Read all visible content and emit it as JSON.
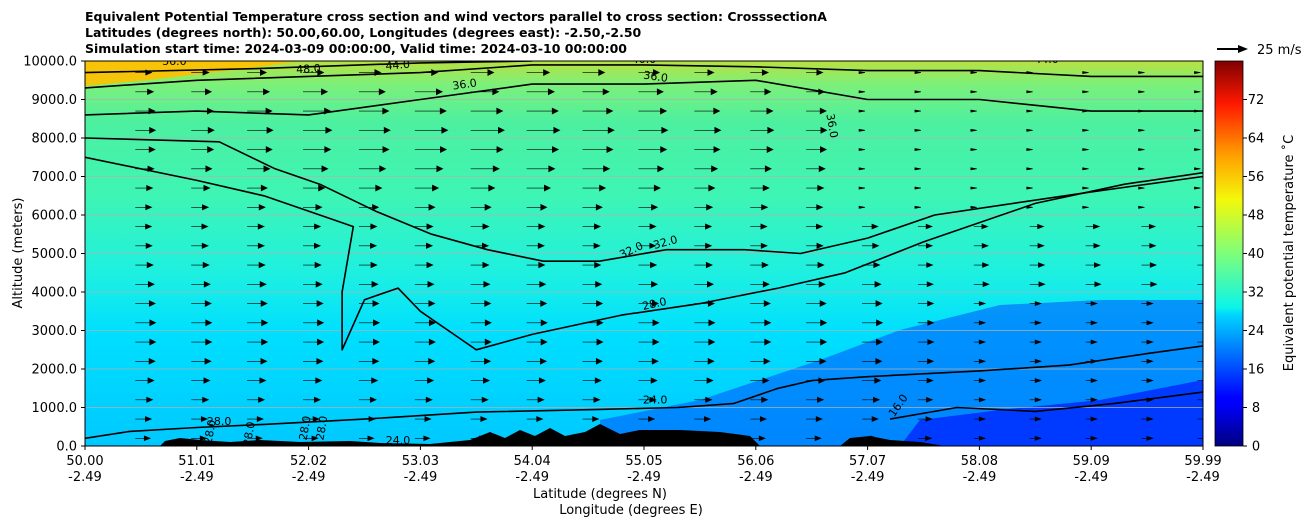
{
  "title": {
    "line1": "Equivalent Potential Temperature cross section and wind vectors parallel to cross section: CrosssectionA",
    "line2": "Latitudes (degrees north): 50.00,60.00, Longitudes (degrees east): -2.50,-2.50",
    "line3": "Simulation start time: 2024-03-09 00:00:00, Valid time: 2024-03-10 00:00:00"
  },
  "chart_data": {
    "type": "heatmap",
    "subtype": "filled contour cross-section with wind vectors",
    "ylabel": "Altitude (meters)",
    "xlabel_lat": "Latitude (degrees N)",
    "xlabel_lon": "Longitude (degrees E)",
    "ylim": [
      0,
      10000
    ],
    "y_ticks": [
      "0.0",
      "1000.0",
      "2000.0",
      "3000.0",
      "4000.0",
      "5000.0",
      "6000.0",
      "7000.0",
      "8000.0",
      "9000.0",
      "10000.0"
    ],
    "x_ticks": [
      {
        "lat": "50.00",
        "lon": "-2.49"
      },
      {
        "lat": "51.01",
        "lon": "-2.49"
      },
      {
        "lat": "52.02",
        "lon": "-2.49"
      },
      {
        "lat": "53.03",
        "lon": "-2.49"
      },
      {
        "lat": "54.04",
        "lon": "-2.49"
      },
      {
        "lat": "55.05",
        "lon": "-2.49"
      },
      {
        "lat": "56.06",
        "lon": "-2.49"
      },
      {
        "lat": "57.07",
        "lon": "-2.49"
      },
      {
        "lat": "58.08",
        "lon": "-2.49"
      },
      {
        "lat": "59.09",
        "lon": "-2.49"
      },
      {
        "lat": "59.99",
        "lon": "-2.49"
      }
    ],
    "colorbar": {
      "label": "Equivalent potential temperature ˚C",
      "range": [
        0,
        80
      ],
      "ticks": [
        "0",
        "8",
        "16",
        "24",
        "32",
        "40",
        "48",
        "56",
        "64",
        "72"
      ]
    },
    "quiver_key": {
      "label": "25 m/s"
    },
    "grid": "horizontal",
    "contour_labels": [
      "56.0",
      "48.0",
      "44.0",
      "40.0",
      "36.0",
      "36.0",
      "44.0",
      "36.0",
      "32.0",
      "32.0",
      "28.0",
      "24.0",
      "16.0",
      "28.0",
      "28.0",
      "28.0",
      "28.0",
      "28.0",
      "24.0"
    ],
    "contours": [
      {
        "level": 24,
        "points": [
          [
            0,
            200
          ],
          [
            0.4,
            380
          ],
          [
            1.0,
            480
          ],
          [
            1.6,
            560
          ],
          [
            2.5,
            700
          ],
          [
            3.5,
            880
          ],
          [
            4.6,
            950
          ],
          [
            5.3,
            1000
          ],
          [
            5.8,
            1100
          ],
          [
            6.2,
            1500
          ],
          [
            6.5,
            1700
          ],
          [
            7.0,
            1800
          ],
          [
            8.0,
            1950
          ],
          [
            8.8,
            2100
          ],
          [
            9.5,
            2400
          ],
          [
            10,
            2600
          ]
        ]
      },
      {
        "level": 28,
        "points": [
          [
            0,
            7500
          ],
          [
            1.0,
            6900
          ],
          [
            1.6,
            6500
          ],
          [
            2.2,
            5900
          ],
          [
            2.4,
            5700
          ],
          [
            2.3,
            4000
          ],
          [
            2.3,
            2500
          ],
          [
            2.5,
            3800
          ],
          [
            2.8,
            4100
          ],
          [
            3.0,
            3500
          ],
          [
            3.3,
            2900
          ],
          [
            3.5,
            2500
          ],
          [
            4.0,
            2900
          ],
          [
            4.8,
            3400
          ],
          [
            5.5,
            3700
          ],
          [
            6.2,
            4100
          ],
          [
            6.8,
            4500
          ],
          [
            7.5,
            5300
          ],
          [
            8.5,
            6300
          ],
          [
            9.3,
            6800
          ],
          [
            10,
            7100
          ]
        ]
      },
      {
        "level": 32,
        "points": [
          [
            0,
            8000
          ],
          [
            1.2,
            7900
          ],
          [
            1.7,
            7200
          ],
          [
            2.1,
            6800
          ],
          [
            2.6,
            6100
          ],
          [
            3.1,
            5500
          ],
          [
            3.6,
            5100
          ],
          [
            4.1,
            4800
          ],
          [
            4.6,
            4800
          ],
          [
            5.2,
            5100
          ],
          [
            5.9,
            5100
          ],
          [
            6.4,
            5000
          ],
          [
            7.0,
            5400
          ],
          [
            7.6,
            6000
          ],
          [
            8.3,
            6300
          ],
          [
            9.0,
            6600
          ],
          [
            10,
            7000
          ]
        ]
      },
      {
        "level": 36,
        "points": [
          [
            0,
            8600
          ],
          [
            1.0,
            8700
          ],
          [
            2.0,
            8600
          ],
          [
            3.0,
            9000
          ],
          [
            4.0,
            9400
          ],
          [
            5.0,
            9400
          ],
          [
            6.0,
            9500
          ],
          [
            7.0,
            9000
          ],
          [
            8.0,
            9000
          ],
          [
            9.0,
            8700
          ],
          [
            10,
            8700
          ]
        ]
      },
      {
        "level": 40,
        "points": [
          [
            0,
            9300
          ],
          [
            1.0,
            9500
          ],
          [
            2.0,
            9600
          ],
          [
            3.0,
            9700
          ],
          [
            4.0,
            9900
          ],
          [
            5.0,
            9900
          ],
          [
            6.0,
            9850
          ],
          [
            7.0,
            9750
          ],
          [
            8.0,
            9750
          ],
          [
            9.0,
            9600
          ],
          [
            10,
            9600
          ]
        ]
      },
      {
        "level": 44,
        "points": [
          [
            0,
            9700
          ],
          [
            1.5,
            9800
          ],
          [
            3.0,
            9950
          ],
          [
            4.0,
            10000
          ]
        ]
      },
      {
        "level": 16,
        "points": [
          [
            7.2,
            700
          ],
          [
            7.8,
            1000
          ],
          [
            8.5,
            900
          ],
          [
            9.2,
            1100
          ],
          [
            10,
            1400
          ]
        ]
      }
    ]
  }
}
